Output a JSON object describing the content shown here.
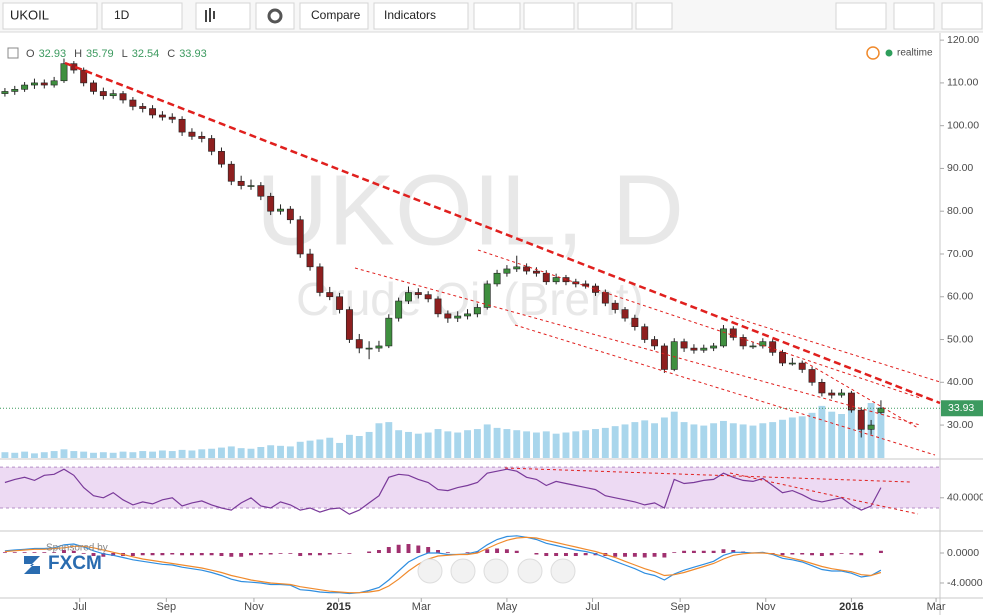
{
  "toolbar": {
    "symbol": "UKOIL",
    "interval": "1D",
    "compare": "Compare",
    "indicators": "Indicators"
  },
  "chart_data": [
    {
      "type": "candlestick",
      "watermark": "UKOIL, D",
      "watermark_subtitle": "Crude Oil (Brent)",
      "legend_labels": [
        "O",
        "H",
        "L",
        "C"
      ],
      "status": "realtime",
      "sponsor": "Sponsored by",
      "sponsor_name": "FXCM",
      "up_color": "#3f8f3f",
      "down_color": "#8e1f1f",
      "categories": [
        null,
        null,
        null,
        null,
        null,
        null,
        null,
        null,
        null,
        null,
        null,
        null,
        null,
        null,
        null,
        null,
        null,
        null,
        null,
        null,
        null,
        null,
        null,
        null,
        null,
        null,
        null,
        null,
        null,
        null,
        null,
        null,
        null,
        null,
        null,
        null,
        null,
        null,
        null,
        null,
        null,
        null,
        null,
        null,
        null,
        null,
        null,
        null,
        null,
        null,
        null,
        null,
        null,
        null,
        null,
        null,
        null,
        null,
        null,
        null,
        null,
        null,
        null,
        null,
        null,
        null,
        null,
        null,
        null,
        null,
        null,
        null,
        null,
        null,
        null,
        null,
        null,
        null,
        null,
        null,
        null,
        null,
        null,
        null,
        null,
        null,
        null,
        null,
        null,
        null
      ],
      "ohlc": [
        [
          107.5,
          108.8,
          106.8,
          108
        ],
        [
          108,
          109.3,
          107.2,
          108.5
        ],
        [
          108.5,
          110.2,
          107.9,
          109.5
        ],
        [
          109.5,
          111,
          108.6,
          110
        ],
        [
          110,
          110.8,
          108.7,
          109.5
        ],
        [
          109.5,
          111.4,
          108.9,
          110.5
        ],
        [
          110.5,
          115.7,
          110,
          114.5
        ],
        [
          114.5,
          115.1,
          112.2,
          113
        ],
        [
          113,
          113.6,
          109.2,
          110
        ],
        [
          110,
          110.6,
          107.3,
          108
        ],
        [
          108,
          108.9,
          106.1,
          107
        ],
        [
          107,
          108.4,
          106.3,
          107.5
        ],
        [
          107.5,
          108.1,
          105.2,
          106
        ],
        [
          106,
          106.7,
          103.6,
          104.5
        ],
        [
          104.5,
          105.3,
          103.1,
          104
        ],
        [
          104,
          104.8,
          101.7,
          102.5
        ],
        [
          102.5,
          103.4,
          101.2,
          102
        ],
        [
          102,
          102.9,
          100.6,
          101.5
        ],
        [
          101.5,
          102.2,
          97.6,
          98.5
        ],
        [
          98.5,
          99.4,
          96.7,
          97.5
        ],
        [
          97.5,
          98.6,
          96.1,
          97
        ],
        [
          97,
          97.8,
          93.1,
          94
        ],
        [
          94,
          94.9,
          90.2,
          91
        ],
        [
          91,
          91.7,
          86.1,
          87
        ],
        [
          87,
          88.3,
          85.1,
          86
        ],
        [
          86,
          87.4,
          85,
          86
        ],
        [
          86,
          86.8,
          82.6,
          83.5
        ],
        [
          83.5,
          84.3,
          79.1,
          80
        ],
        [
          80,
          81.6,
          79.2,
          80.5
        ],
        [
          80.5,
          81.2,
          77.1,
          78
        ],
        [
          78,
          78.9,
          69.1,
          70
        ],
        [
          70,
          71.2,
          66.1,
          67
        ],
        [
          67,
          67.8,
          60.1,
          61
        ],
        [
          61,
          62.3,
          59.2,
          60
        ],
        [
          60,
          60.9,
          56.1,
          57
        ],
        [
          57,
          57.7,
          49.2,
          50
        ],
        [
          50,
          51.3,
          46.8,
          48
        ],
        [
          48,
          49.6,
          45.4,
          48
        ],
        [
          48,
          49.7,
          47.1,
          48.5
        ],
        [
          48.5,
          55.9,
          48,
          55
        ],
        [
          55,
          59.8,
          54.2,
          59
        ],
        [
          59,
          62.4,
          58.3,
          61
        ],
        [
          61,
          62,
          59.6,
          60.5
        ],
        [
          60.5,
          61.3,
          58.7,
          59.5
        ],
        [
          59.5,
          60.1,
          55.2,
          56
        ],
        [
          56,
          56.8,
          53.9,
          55
        ],
        [
          55,
          56.6,
          54.1,
          55.5
        ],
        [
          55.5,
          57.1,
          54.7,
          56
        ],
        [
          56,
          58.4,
          55.2,
          57.5
        ],
        [
          57.5,
          63.8,
          57,
          63
        ],
        [
          63,
          66.3,
          62.4,
          65.5
        ],
        [
          65.5,
          67.4,
          64.7,
          66.5
        ],
        [
          66.5,
          69.6,
          65.8,
          67
        ],
        [
          67,
          67.8,
          65.2,
          66
        ],
        [
          66,
          66.9,
          64.7,
          65.5
        ],
        [
          65.5,
          66.2,
          62.8,
          63.5
        ],
        [
          63.5,
          65.4,
          62.9,
          64.5
        ],
        [
          64.5,
          65.1,
          62.7,
          63.5
        ],
        [
          63.5,
          64.2,
          62.2,
          63
        ],
        [
          63,
          63.8,
          61.9,
          62.5
        ],
        [
          62.5,
          63.1,
          60.2,
          61
        ],
        [
          61,
          61.7,
          57.8,
          58.5
        ],
        [
          58.5,
          59.2,
          56.1,
          57
        ],
        [
          57,
          57.6,
          54.2,
          55
        ],
        [
          55,
          55.8,
          52.1,
          53
        ],
        [
          53,
          53.7,
          49.2,
          50
        ],
        [
          50,
          50.8,
          47.6,
          48.5
        ],
        [
          48.5,
          49.1,
          42.2,
          43
        ],
        [
          43,
          50.3,
          42.6,
          49.5
        ],
        [
          49.5,
          50.2,
          47.1,
          48
        ],
        [
          48,
          48.9,
          46.7,
          47.5
        ],
        [
          47.5,
          48.8,
          46.9,
          48
        ],
        [
          48,
          49.2,
          47.3,
          48.5
        ],
        [
          48.5,
          53.4,
          48.1,
          52.5
        ],
        [
          52.5,
          53.1,
          49.8,
          50.5
        ],
        [
          50.5,
          51.2,
          47.7,
          48.5
        ],
        [
          48.5,
          49.4,
          47.8,
          48.5
        ],
        [
          48.5,
          50.3,
          47.9,
          49.5
        ],
        [
          49.5,
          50.1,
          46.2,
          47
        ],
        [
          47,
          47.6,
          43.8,
          44.5
        ],
        [
          44.5,
          45.7,
          43.9,
          44.5
        ],
        [
          44.5,
          45.1,
          42.2,
          43
        ],
        [
          43,
          43.6,
          39.2,
          40
        ],
        [
          40,
          40.8,
          36.7,
          37.5
        ],
        [
          37.5,
          38.3,
          36.2,
          37
        ],
        [
          37,
          38.4,
          36.4,
          37.5
        ],
        [
          37.5,
          38,
          32.9,
          33.5
        ],
        [
          33.5,
          34.2,
          27.1,
          29
        ],
        [
          29,
          31.2,
          27.8,
          30
        ],
        [
          32.93,
          35.79,
          32.54,
          33.93
        ]
      ],
      "volume": {
        "color": "#8cc8e6",
        "values": [
          10,
          9,
          11,
          8,
          10,
          12,
          15,
          12,
          11,
          9,
          10,
          9,
          11,
          10,
          12,
          11,
          13,
          12,
          14,
          13,
          15,
          16,
          18,
          20,
          17,
          16,
          19,
          22,
          21,
          20,
          28,
          30,
          32,
          35,
          26,
          40,
          38,
          45,
          60,
          62,
          48,
          45,
          42,
          44,
          50,
          46,
          44,
          48,
          50,
          58,
          52,
          50,
          48,
          46,
          44,
          46,
          42,
          44,
          46,
          48,
          50,
          52,
          55,
          58,
          62,
          65,
          60,
          70,
          80,
          62,
          58,
          56,
          60,
          64,
          60,
          58,
          56,
          60,
          62,
          66,
          70,
          72,
          78,
          90,
          80,
          76,
          82,
          74,
          95,
          88
        ]
      },
      "xlim": [
        -0.5,
        95
      ],
      "xticks": [
        {
          "value": 7.6,
          "label": "Jul"
        },
        {
          "value": 16.4,
          "label": "Sep"
        },
        {
          "value": 25.3,
          "label": "Nov"
        },
        {
          "value": 33.9,
          "label": "2015"
        },
        {
          "value": 42.3,
          "label": "Mar"
        },
        {
          "value": 51,
          "label": "May"
        },
        {
          "value": 59.7,
          "label": "Jul"
        },
        {
          "value": 68.6,
          "label": "Sep"
        },
        {
          "value": 77.3,
          "label": "Nov"
        },
        {
          "value": 86,
          "label": "2016"
        },
        {
          "value": 94.6,
          "label": "Mar"
        }
      ],
      "ylim": [
        22.3,
        121.2
      ],
      "yticks": [
        {
          "value": 30,
          "label": "30.00"
        },
        {
          "value": 40,
          "label": "40.00"
        },
        {
          "value": 50,
          "label": "50.00"
        },
        {
          "value": 60,
          "label": "60.00"
        },
        {
          "value": 70,
          "label": "70.00"
        },
        {
          "value": 80,
          "label": "80.00"
        },
        {
          "value": 90,
          "label": "90.00"
        },
        {
          "value": 100,
          "label": "100.00"
        },
        {
          "value": 110,
          "label": "110.00"
        },
        {
          "value": 120,
          "label": "120.00"
        }
      ]
    },
    {
      "type": "line",
      "color": "#7a3a9a",
      "band": [
        30,
        70
      ],
      "band_color": "#eddaf3",
      "values": [
        55,
        58,
        60,
        57,
        62,
        63,
        68,
        62,
        50,
        42,
        40,
        45,
        38,
        33,
        36,
        34,
        38,
        40,
        32,
        35,
        37,
        33,
        30,
        28,
        35,
        40,
        32,
        30,
        36,
        33,
        28,
        30,
        26,
        29,
        30,
        24,
        28,
        35,
        42,
        60,
        63,
        62,
        58,
        55,
        48,
        47,
        50,
        52,
        55,
        64,
        66,
        68,
        66,
        60,
        58,
        52,
        56,
        54,
        52,
        50,
        48,
        42,
        40,
        38,
        36,
        33,
        35,
        30,
        58,
        54,
        55,
        57,
        58,
        64,
        60,
        57,
        56,
        59,
        52,
        45,
        47,
        43,
        38,
        36,
        38,
        40,
        33,
        28,
        32,
        50
      ],
      "ylim": [
        8.5,
        75
      ],
      "yticks": [
        {
          "value": 40,
          "label": "40.0000"
        }
      ]
    },
    {
      "type": "macd",
      "series": [
        {
          "color": "#2f8ee0",
          "values": [
            0.3,
            0.4,
            0.5,
            0.6,
            0.6,
            0.7,
            1.1,
            1.2,
            0.8,
            0.3,
            -0.1,
            -0.3,
            -0.6,
            -0.9,
            -1.1,
            -1.3,
            -1.5,
            -1.6,
            -1.9,
            -2.1,
            -2.3,
            -2.6,
            -3.0,
            -3.5,
            -3.8,
            -3.9,
            -4.0,
            -4.2,
            -4.2,
            -4.3,
            -4.9,
            -5.0,
            -5.2,
            -5.3,
            -5.3,
            -5.4,
            -5.3,
            -5.0,
            -4.6,
            -3.6,
            -2.4,
            -1.2,
            -0.5,
            0.0,
            0.0,
            -0.2,
            -0.2,
            -0.1,
            0.2,
            1.1,
            1.8,
            2.2,
            2.3,
            2.1,
            1.8,
            1.3,
            1.0,
            0.7,
            0.4,
            0.2,
            -0.1,
            -0.6,
            -1.1,
            -1.6,
            -2.1,
            -2.7,
            -3.0,
            -3.6,
            -2.8,
            -2.3,
            -1.9,
            -1.5,
            -1.1,
            -0.3,
            0.1,
            0.1,
            0.0,
            0.1,
            -0.2,
            -0.7,
            -0.9,
            -1.2,
            -1.7,
            -2.2,
            -2.4,
            -2.4,
            -2.7,
            -3.2,
            -3.0,
            -2.3
          ]
        },
        {
          "color": "#f08a2c",
          "values": [
            0.2,
            0.3,
            0.4,
            0.5,
            0.5,
            0.6,
            0.7,
            0.9,
            0.9,
            0.7,
            0.4,
            0.1,
            -0.2,
            -0.5,
            -0.8,
            -1.0,
            -1.2,
            -1.4,
            -1.6,
            -1.8,
            -2.0,
            -2.3,
            -2.6,
            -3.0,
            -3.3,
            -3.6,
            -3.8,
            -4.0,
            -4.1,
            -4.2,
            -4.5,
            -4.7,
            -4.9,
            -5.1,
            -5.2,
            -5.3,
            -5.3,
            -5.2,
            -5.0,
            -4.4,
            -3.5,
            -2.4,
            -1.5,
            -0.8,
            -0.4,
            -0.3,
            -0.2,
            -0.2,
            0.0,
            0.6,
            1.2,
            1.7,
            2.0,
            2.1,
            2.0,
            1.7,
            1.4,
            1.1,
            0.8,
            0.5,
            0.2,
            -0.2,
            -0.6,
            -1.1,
            -1.6,
            -2.1,
            -2.5,
            -3.0,
            -2.9,
            -2.6,
            -2.2,
            -1.8,
            -1.4,
            -0.8,
            -0.3,
            -0.1,
            0.0,
            0.0,
            -0.1,
            -0.4,
            -0.7,
            -1.0,
            -1.4,
            -1.8,
            -2.1,
            -2.3,
            -2.5,
            -2.9,
            -3.0,
            -2.6
          ]
        }
      ],
      "histogram": {
        "color": "#a0306f",
        "values": [
          0.1,
          0.1,
          0.1,
          0.1,
          0.1,
          0.1,
          0.4,
          0.3,
          -0.1,
          -0.4,
          -0.5,
          -0.4,
          -0.4,
          -0.4,
          -0.3,
          -0.3,
          -0.3,
          -0.2,
          -0.3,
          -0.3,
          -0.3,
          -0.3,
          -0.4,
          -0.5,
          -0.5,
          -0.3,
          -0.2,
          -0.2,
          -0.1,
          -0.1,
          -0.4,
          -0.3,
          -0.3,
          -0.2,
          -0.1,
          -0.1,
          0.0,
          0.2,
          0.4,
          0.8,
          1.1,
          1.2,
          1.0,
          0.8,
          0.4,
          0.1,
          0.0,
          0.1,
          0.2,
          0.5,
          0.6,
          0.5,
          0.3,
          0.0,
          -0.2,
          -0.4,
          -0.4,
          -0.4,
          -0.4,
          -0.3,
          -0.3,
          -0.4,
          -0.5,
          -0.5,
          -0.5,
          -0.6,
          -0.5,
          -0.6,
          0.1,
          0.3,
          0.3,
          0.3,
          0.3,
          0.5,
          0.4,
          0.2,
          0.0,
          0.1,
          -0.1,
          -0.3,
          -0.2,
          -0.2,
          -0.3,
          -0.4,
          -0.3,
          -0.1,
          -0.2,
          -0.3,
          0.0,
          0.3
        ]
      },
      "ylim": [
        -5.87,
        2.67
      ],
      "yticks": [
        {
          "value": 0,
          "label": "0.0000"
        },
        {
          "value": -4,
          "label": "-4.0000"
        }
      ]
    }
  ]
}
